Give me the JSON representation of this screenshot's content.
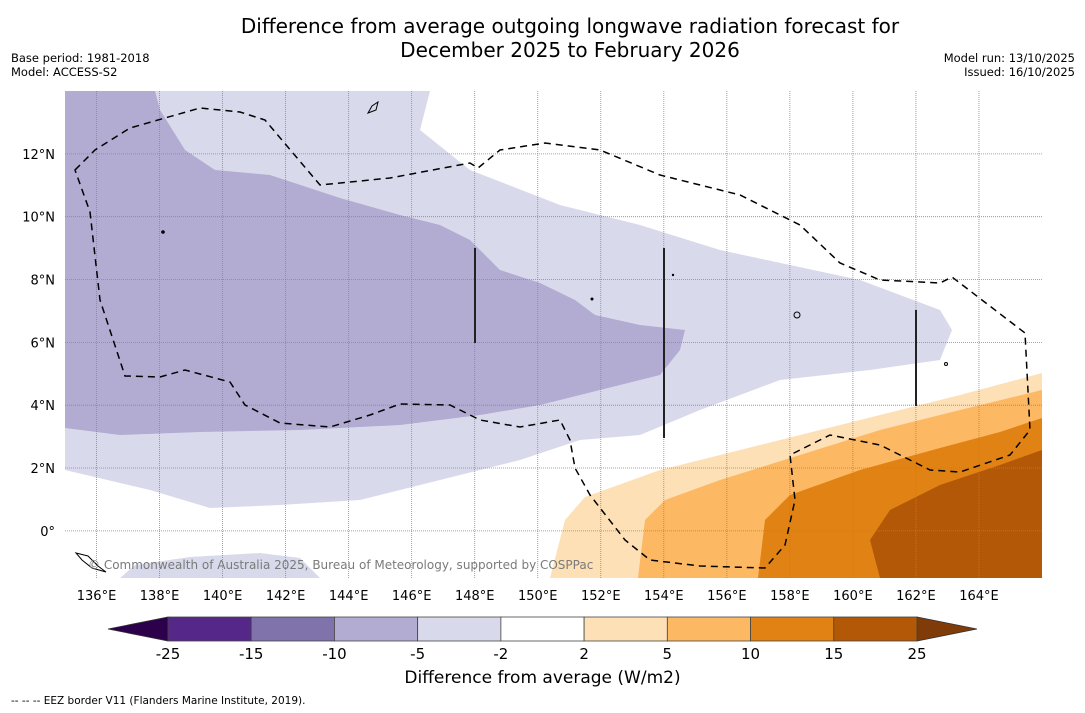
{
  "header": {
    "title": "Difference from average outgoing longwave radiation forecast for\nDecember 2025 to February 2026",
    "base_period": "Base period: 1981-2018",
    "model": "Model: ACCESS-S2",
    "model_run": "Model run: 13/10/2025",
    "issued": "Issued: 16/10/2025"
  },
  "map": {
    "copyright": "© Commonwealth of Australia 2025, Bureau of Meteorology, supported by COSPPac",
    "lon_ticks": [
      "136°E",
      "138°E",
      "140°E",
      "142°E",
      "144°E",
      "146°E",
      "148°E",
      "150°E",
      "152°E",
      "154°E",
      "156°E",
      "158°E",
      "160°E",
      "162°E",
      "164°E"
    ],
    "lat_ticks": [
      "12°N",
      "10°N",
      "8°N",
      "6°N",
      "4°N",
      "2°N",
      "0°"
    ],
    "lon_range": [
      135,
      166
    ],
    "lat_range": [
      -1.5,
      14
    ]
  },
  "colorbar": {
    "title": "Difference from average (W/m2)",
    "tick_labels": [
      "-25",
      "-15",
      "-10",
      "-5",
      "-2",
      "2",
      "5",
      "10",
      "15",
      "25"
    ],
    "bins": [
      {
        "from": -25,
        "to": -15,
        "color": "#542788"
      },
      {
        "from": -15,
        "to": -10,
        "color": "#8073ac"
      },
      {
        "from": -10,
        "to": -5,
        "color": "#b2abd2"
      },
      {
        "from": -5,
        "to": -2,
        "color": "#d8daeb"
      },
      {
        "from": -2,
        "to": 2,
        "color": "#ffffff"
      },
      {
        "from": 2,
        "to": 5,
        "color": "#fee0b6"
      },
      {
        "from": 5,
        "to": 10,
        "color": "#fdb863"
      },
      {
        "from": 10,
        "to": 15,
        "color": "#e08214"
      },
      {
        "from": 15,
        "to": 25,
        "color": "#b35806"
      }
    ],
    "under_color": "#2d004b",
    "over_color": "#7f3b08"
  },
  "footer": {
    "legend_note": "--  --  -- EEZ border V11 (Flanders Marine Institute, 2019)."
  }
}
